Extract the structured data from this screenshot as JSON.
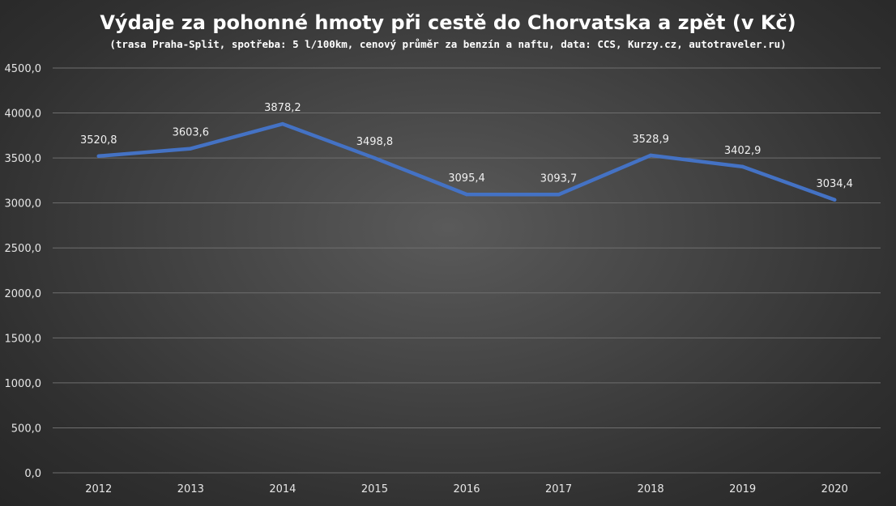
{
  "chart_data": {
    "type": "line",
    "title": "Výdaje za pohonné hmoty při cestě do Chorvatska a zpět (v Kč)",
    "subtitle": "(trasa Praha-Split, spotřeba: 5 l/100km, cenový průměr za benzín a naftu, data: CCS, Kurzy.cz, autotraveler.ru)",
    "categories": [
      "2012",
      "2013",
      "2014",
      "2015",
      "2016",
      "2017",
      "2018",
      "2019",
      "2020"
    ],
    "series": [
      {
        "values": [
          3520.8,
          3603.6,
          3878.2,
          3498.8,
          3095.4,
          3093.7,
          3528.9,
          3402.9,
          3034.4
        ],
        "color": "#4472c4"
      }
    ],
    "data_labels": [
      "3520,8",
      "3603,6",
      "3878,2",
      "3498,8",
      "3095,4",
      "3093,7",
      "3528,9",
      "3402,9",
      "3034,4"
    ],
    "y_ticks": [
      "0,0",
      "500,0",
      "1000,0",
      "1500,0",
      "2000,0",
      "2500,0",
      "3000,0",
      "3500,0",
      "4000,0",
      "4500,0"
    ],
    "ylim": [
      0,
      4500
    ],
    "y_step": 500,
    "xlabel": "",
    "ylabel": "",
    "grid": true,
    "legend": "none",
    "colors": {
      "line": "#4472c4",
      "grid": "#6e6e6e",
      "text": "#ffffff"
    }
  }
}
